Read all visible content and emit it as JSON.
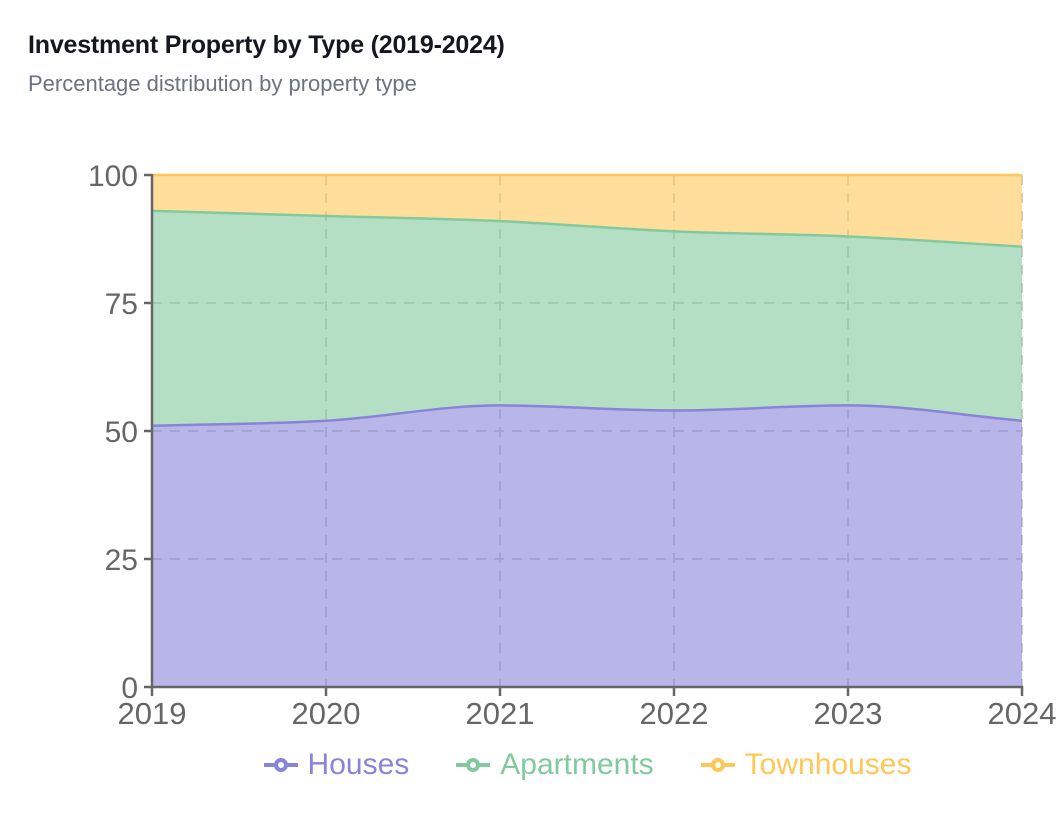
{
  "header": {
    "title": "Investment Property by Type (2019-2024)",
    "subtitle": "Percentage distribution by property type"
  },
  "chart_data": {
    "type": "area",
    "stacked": true,
    "title": "Investment Property by Type (2019-2024)",
    "subtitle": "Percentage distribution by property type",
    "x": [
      2019,
      2020,
      2021,
      2022,
      2023,
      2024
    ],
    "x_tick_labels": [
      "2019",
      "2020",
      "2021",
      "2022",
      "2023",
      "2024"
    ],
    "xlabel": "",
    "ylabel": "",
    "ylim": [
      0,
      100
    ],
    "yticks": [
      0,
      25,
      50,
      75,
      100
    ],
    "grid": "dashed",
    "legend_position": "bottom",
    "curve": "monotone",
    "series": [
      {
        "name": "Houses",
        "color": "#8884d8",
        "values": [
          51,
          52,
          55,
          54,
          55,
          52
        ]
      },
      {
        "name": "Apartments",
        "color": "#82ca9d",
        "values": [
          42,
          40,
          36,
          35,
          33,
          34
        ]
      },
      {
        "name": "Townhouses",
        "color": "#ffc658",
        "values": [
          7,
          8,
          9,
          11,
          12,
          14
        ]
      }
    ]
  },
  "colors": {
    "axis": "#666666",
    "grid": "#cccccc",
    "title": "#14171d",
    "subtitle": "#6b7280",
    "background": "#ffffff"
  }
}
